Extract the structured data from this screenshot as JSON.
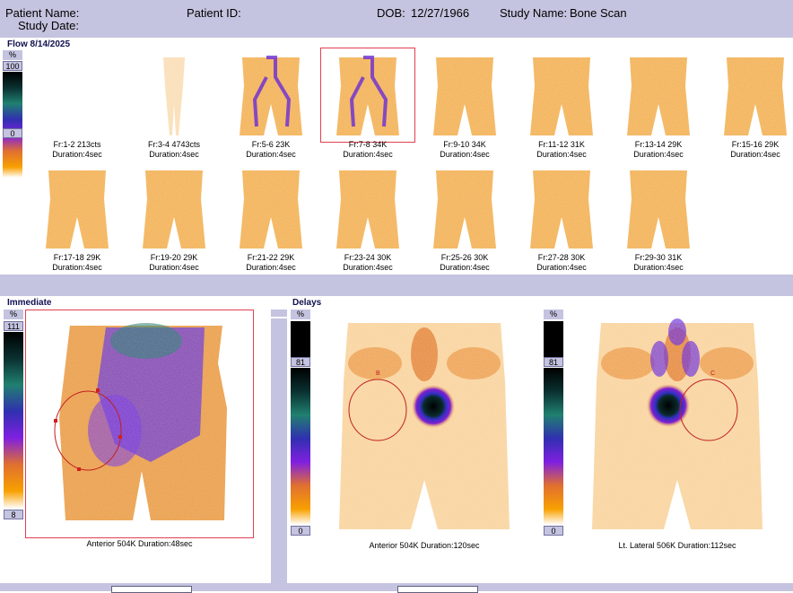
{
  "header": {
    "patient_name_label": "Patient Name:",
    "patient_id_label": "Patient ID:",
    "dob_label": "DOB:",
    "dob_value": "12/27/1966",
    "study_name_label": "Study Name:",
    "study_name_value": "Bone Scan",
    "study_date_label": "Study Date:"
  },
  "flow": {
    "title": "Flow 8/14/2025",
    "scale": {
      "unit": "%",
      "max": "100",
      "min": "0"
    },
    "frames_row1": [
      {
        "label": "Fr:1-2 213cts",
        "duration": "Duration:4sec"
      },
      {
        "label": "Fr:3-4 4743cts",
        "duration": "Duration:4sec"
      },
      {
        "label": "Fr:5-6 23K",
        "duration": "Duration:4sec"
      },
      {
        "label": "Fr:7-8 34K",
        "duration": "Duration:4sec"
      },
      {
        "label": "Fr:9-10 34K",
        "duration": "Duration:4sec"
      },
      {
        "label": "Fr:11-12 31K",
        "duration": "Duration:4sec"
      },
      {
        "label": "Fr:13-14 29K",
        "duration": "Duration:4sec"
      },
      {
        "label": "Fr:15-16 29K",
        "duration": "Duration:4sec"
      }
    ],
    "frames_row2": [
      {
        "label": "Fr:17-18 29K",
        "duration": "Duration:4sec"
      },
      {
        "label": "Fr:19-20 29K",
        "duration": "Duration:4sec"
      },
      {
        "label": "Fr:21-22 29K",
        "duration": "Duration:4sec"
      },
      {
        "label": "Fr:23-24 30K",
        "duration": "Duration:4sec"
      },
      {
        "label": "Fr:25-26 30K",
        "duration": "Duration:4sec"
      },
      {
        "label": "Fr:27-28 30K",
        "duration": "Duration:4sec"
      },
      {
        "label": "Fr:29-30 31K",
        "duration": "Duration:4sec"
      }
    ]
  },
  "immediate": {
    "title": "Immediate",
    "scale": {
      "unit": "%",
      "max": "111",
      "min": "8"
    },
    "caption": "Anterior 504K Duration:48sec"
  },
  "delays": {
    "title": "Delays",
    "panels": [
      {
        "scale": {
          "unit": "%",
          "max": "81",
          "min": "0"
        },
        "roi_label": "B",
        "caption": "Anterior 504K Duration:120sec"
      },
      {
        "scale": {
          "unit": "%",
          "max": "81",
          "min": "0"
        },
        "roi_label": "C",
        "caption": "Lt. Lateral 506K Duration:112sec"
      }
    ]
  },
  "colors": {
    "band": "#c4c4e0",
    "select": "#e04050",
    "roi": "#c02020"
  }
}
